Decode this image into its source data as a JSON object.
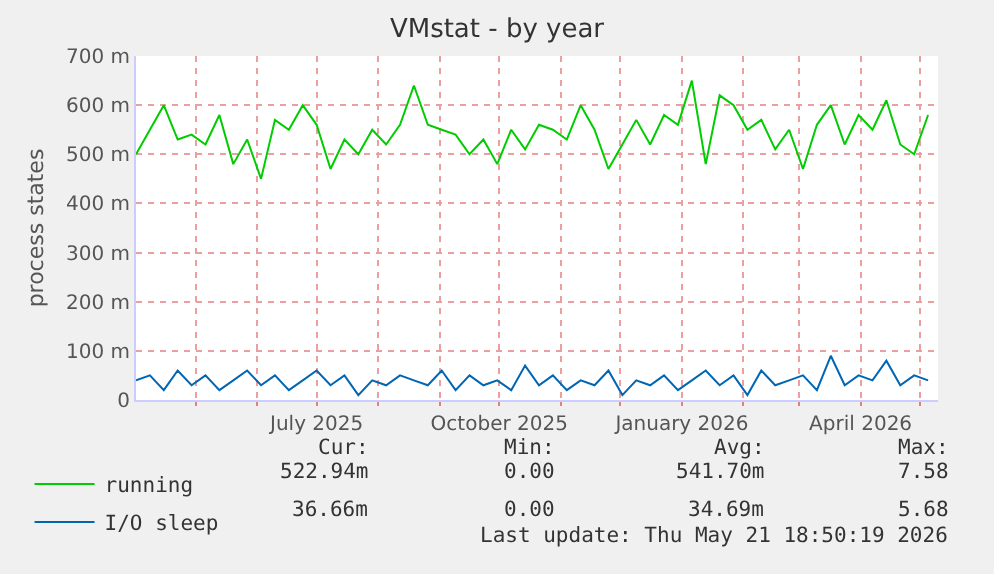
{
  "chart_data": {
    "type": "line",
    "title": "VMstat - by year",
    "ylabel": "process states",
    "x": [
      "2025-04-01",
      "2025-04-08",
      "2025-04-15",
      "2025-04-22",
      "2025-04-29",
      "2025-05-06",
      "2025-05-13",
      "2025-05-20",
      "2025-05-27",
      "2025-06-03",
      "2025-06-10",
      "2025-06-17",
      "2025-06-24",
      "2025-07-01",
      "2025-07-08",
      "2025-07-15",
      "2025-07-22",
      "2025-07-29",
      "2025-08-05",
      "2025-08-12",
      "2025-08-19",
      "2025-08-26",
      "2025-09-02",
      "2025-09-09",
      "2025-09-16",
      "2025-09-23",
      "2025-09-30",
      "2025-10-07",
      "2025-10-14",
      "2025-10-21",
      "2025-10-28",
      "2025-11-04",
      "2025-11-11",
      "2025-11-18",
      "2025-11-25",
      "2025-12-02",
      "2025-12-09",
      "2025-12-16",
      "2025-12-23",
      "2025-12-30",
      "2026-01-06",
      "2026-01-13",
      "2026-01-20",
      "2026-01-27",
      "2026-02-03",
      "2026-02-10",
      "2026-02-17",
      "2026-02-24",
      "2026-03-03",
      "2026-03-10",
      "2026-03-17",
      "2026-03-24",
      "2026-03-31",
      "2026-04-07",
      "2026-04-14",
      "2026-04-21",
      "2026-04-28",
      "2026-05-05"
    ],
    "series": [
      {
        "name": "running",
        "color": "#00cc00",
        "values": [
          500,
          550,
          600,
          530,
          540,
          520,
          580,
          480,
          530,
          450,
          570,
          550,
          600,
          560,
          470,
          530,
          500,
          550,
          520,
          560,
          640,
          560,
          550,
          540,
          500,
          530,
          480,
          550,
          510,
          560,
          550,
          530,
          600,
          550,
          470,
          520,
          570,
          520,
          580,
          560,
          650,
          480,
          620,
          600,
          550,
          570,
          510,
          550,
          470,
          560,
          600,
          520,
          580,
          550,
          610,
          520,
          500,
          580
        ]
      },
      {
        "name": "I/O sleep",
        "color": "#0066b3",
        "values": [
          40,
          50,
          20,
          60,
          30,
          50,
          20,
          40,
          60,
          30,
          50,
          20,
          40,
          60,
          30,
          50,
          10,
          40,
          30,
          50,
          40,
          30,
          60,
          20,
          50,
          30,
          40,
          20,
          70,
          30,
          50,
          20,
          40,
          30,
          60,
          10,
          40,
          30,
          50,
          20,
          40,
          60,
          30,
          50,
          10,
          60,
          30,
          40,
          50,
          20,
          90,
          30,
          50,
          40,
          80,
          30,
          50,
          40
        ]
      }
    ],
    "xlim": [
      "2025-04-01",
      "2026-05-10"
    ],
    "xticks": [
      {
        "value": "2025-05-01",
        "label": null
      },
      {
        "value": "2025-06-01",
        "label": null
      },
      {
        "value": "2025-07-01",
        "label": "July 2025"
      },
      {
        "value": "2025-08-01",
        "label": null
      },
      {
        "value": "2025-09-01",
        "label": null
      },
      {
        "value": "2025-10-01",
        "label": "October 2025"
      },
      {
        "value": "2025-11-01",
        "label": null
      },
      {
        "value": "2025-12-01",
        "label": null
      },
      {
        "value": "2026-01-01",
        "label": "January 2026"
      },
      {
        "value": "2026-02-01",
        "label": null
      },
      {
        "value": "2026-03-01",
        "label": null
      },
      {
        "value": "2026-04-01",
        "label": "April 2026"
      },
      {
        "value": "2026-05-01",
        "label": null
      }
    ],
    "ylim": [
      0,
      700
    ],
    "yticks": [
      0,
      {
        "value": 100,
        "label": "100 m"
      },
      {
        "value": 200,
        "label": "200 m"
      },
      {
        "value": 300,
        "label": "300 m"
      },
      {
        "value": 400,
        "label": "400 m"
      },
      {
        "value": 500,
        "label": "500 m"
      },
      {
        "value": 600,
        "label": "600 m"
      },
      {
        "value": 700,
        "label": "700 m"
      }
    ],
    "grid": true,
    "legend": "bottom left",
    "marker": "none",
    "line_style": "solid",
    "annotations": [
      "Cur:",
      "Min:",
      "Avg:",
      "Max:",
      "522.94m",
      "0.00",
      "541.70m",
      "7.58",
      "36.66m",
      "0.00",
      "34.69m",
      "5.68",
      "Last update: Thu May 21 18:50:19 2026"
    ]
  }
}
